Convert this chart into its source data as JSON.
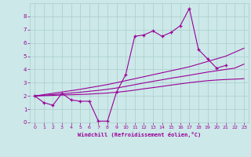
{
  "xlabel": "Windchill (Refroidissement éolien,°C)",
  "x": [
    0,
    1,
    2,
    3,
    4,
    5,
    6,
    7,
    8,
    9,
    10,
    11,
    12,
    13,
    14,
    15,
    16,
    17,
    18,
    19,
    20,
    21,
    22,
    23
  ],
  "line1": [
    2.0,
    1.5,
    1.3,
    2.2,
    1.7,
    1.6,
    1.6,
    0.1,
    0.1,
    2.3,
    3.6,
    6.5,
    6.6,
    6.9,
    6.5,
    6.8,
    7.3,
    8.6,
    5.5,
    4.8,
    4.1,
    4.3,
    null,
    null
  ],
  "regression1": [
    2.0,
    2.02,
    2.04,
    2.07,
    2.09,
    2.11,
    2.14,
    2.18,
    2.22,
    2.28,
    2.35,
    2.44,
    2.54,
    2.63,
    2.72,
    2.82,
    2.91,
    3.0,
    3.08,
    3.15,
    3.2,
    3.24,
    3.27,
    3.3
  ],
  "regression2": [
    2.0,
    2.05,
    2.1,
    2.16,
    2.22,
    2.28,
    2.35,
    2.42,
    2.5,
    2.6,
    2.72,
    2.85,
    2.98,
    3.1,
    3.22,
    3.34,
    3.45,
    3.56,
    3.68,
    3.8,
    3.9,
    4.0,
    4.1,
    4.4
  ],
  "regression3": [
    2.0,
    2.1,
    2.2,
    2.3,
    2.4,
    2.5,
    2.62,
    2.74,
    2.86,
    3.0,
    3.15,
    3.3,
    3.45,
    3.6,
    3.75,
    3.9,
    4.05,
    4.2,
    4.4,
    4.6,
    4.8,
    5.0,
    5.3,
    5.6
  ],
  "color": "#990099",
  "bg_color": "#cce8e8",
  "grid_color": "#aacece",
  "ylim": [
    0,
    9
  ],
  "xlim": [
    -0.5,
    23.5
  ],
  "yticks": [
    0,
    1,
    2,
    3,
    4,
    5,
    6,
    7,
    8
  ],
  "xticks": [
    0,
    1,
    2,
    3,
    4,
    5,
    6,
    7,
    8,
    9,
    10,
    11,
    12,
    13,
    14,
    15,
    16,
    17,
    18,
    19,
    20,
    21,
    22,
    23
  ]
}
